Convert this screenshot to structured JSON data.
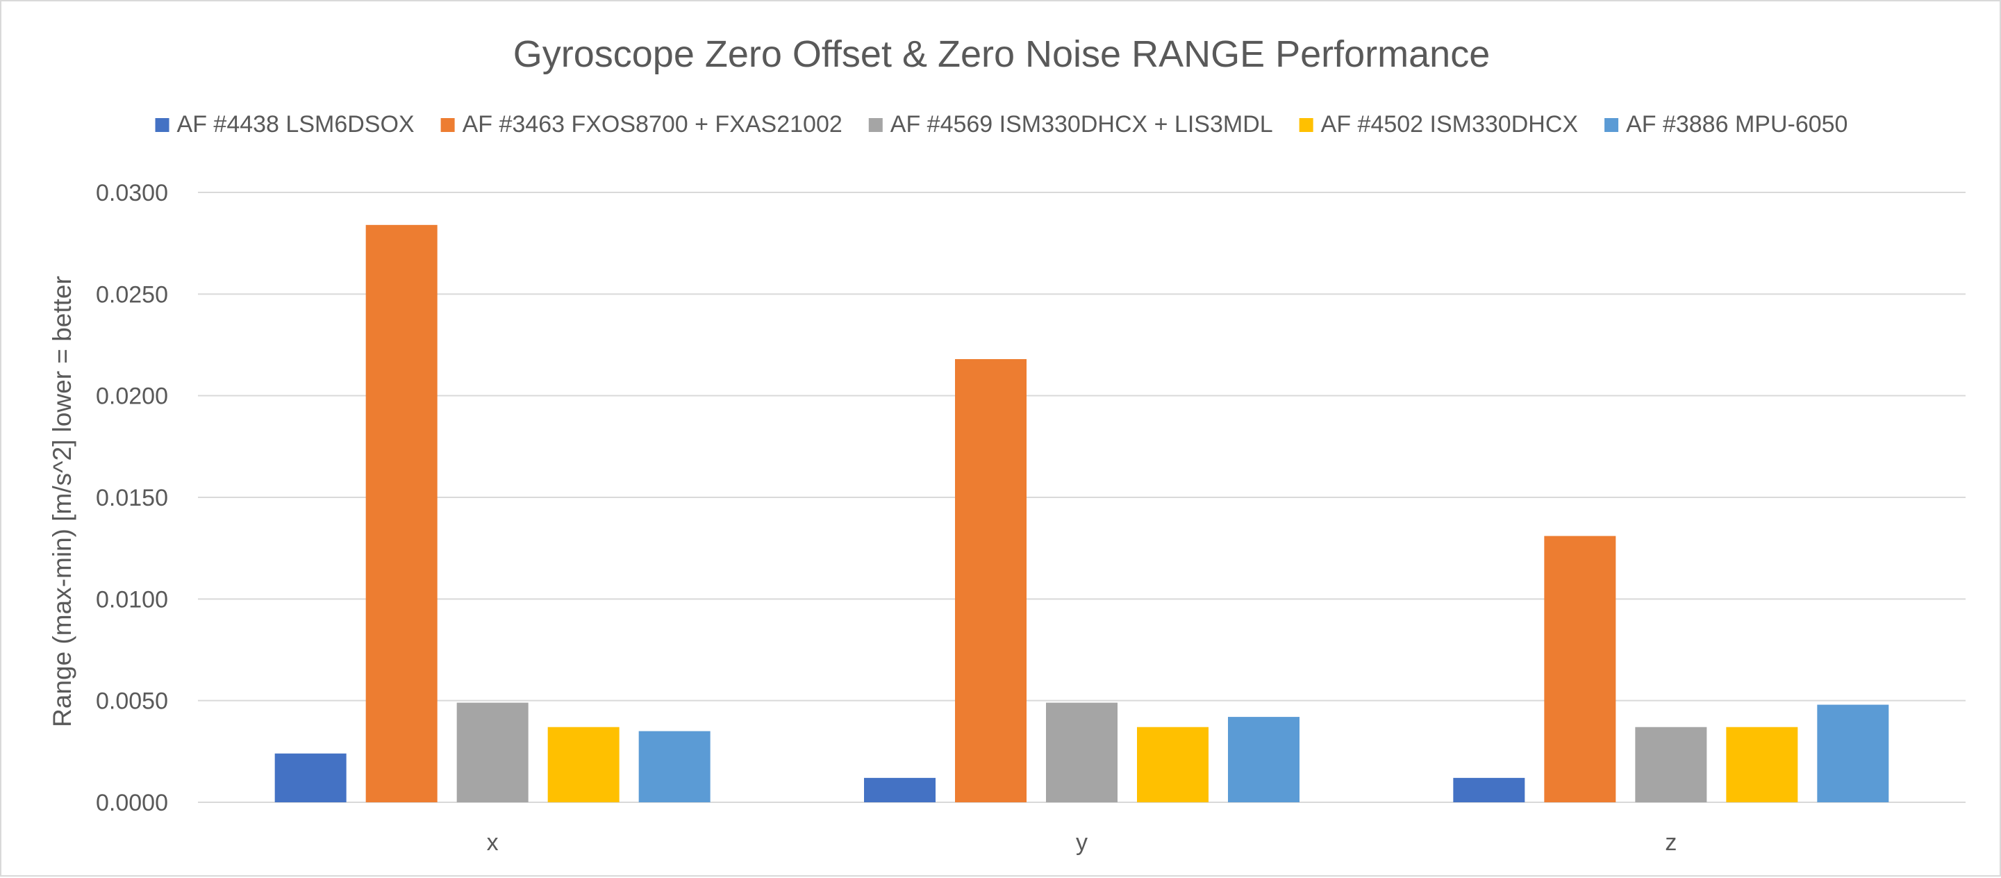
{
  "chart_data": {
    "type": "bar",
    "title": "Gyroscope Zero Offset & Zero Noise RANGE Performance",
    "xlabel": "",
    "ylabel": "Range (max-min) [m/s^2]  lower = better",
    "categories": [
      "x",
      "y",
      "z"
    ],
    "ylim": [
      0,
      0.03
    ],
    "yticks": [
      "0.0000",
      "0.0050",
      "0.0100",
      "0.0150",
      "0.0200",
      "0.0250",
      "0.0300"
    ],
    "ytick_values": [
      0,
      0.005,
      0.01,
      0.015,
      0.02,
      0.025,
      0.03
    ],
    "grid": true,
    "legend_position": "top",
    "series": [
      {
        "name": "AF #4438 LSM6DSOX",
        "color": "#4472c4",
        "values": [
          0.0024,
          0.0012,
          0.0012
        ]
      },
      {
        "name": "AF #3463 FXOS8700 + FXAS21002",
        "color": "#ed7d31",
        "values": [
          0.0284,
          0.0218,
          0.0131
        ]
      },
      {
        "name": "AF #4569 ISM330DHCX + LIS3MDL",
        "color": "#a5a5a5",
        "values": [
          0.0049,
          0.0049,
          0.0037
        ]
      },
      {
        "name": "AF #4502 ISM330DHCX",
        "color": "#ffc000",
        "values": [
          0.0037,
          0.0037,
          0.0037
        ]
      },
      {
        "name": "AF #3886 MPU-6050",
        "color": "#5b9bd5",
        "values": [
          0.0035,
          0.0042,
          0.0048
        ]
      }
    ]
  }
}
